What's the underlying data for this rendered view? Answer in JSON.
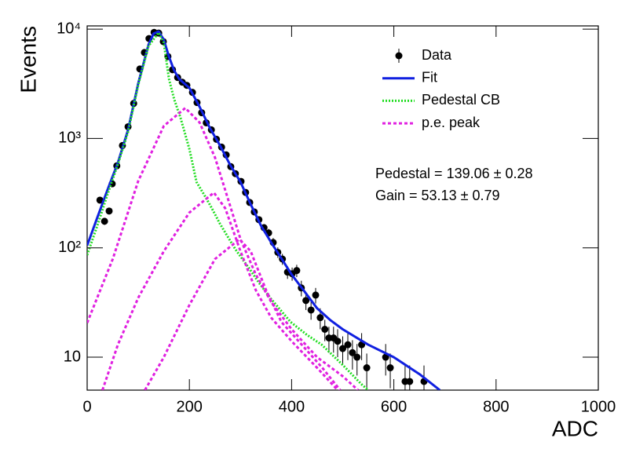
{
  "chart_data": {
    "type": "log-fit",
    "xlabel": "ADC",
    "ylabel": "Events",
    "xlim": [
      0,
      1000
    ],
    "xticks": [
      0,
      200,
      400,
      600,
      800,
      1000
    ],
    "ylim": [
      5,
      10700
    ],
    "yticks": [
      10,
      {
        "value": 100,
        "label": "10²"
      },
      {
        "value": 1000,
        "label": "10³"
      },
      {
        "value": 10000,
        "label": "10⁴"
      }
    ],
    "log_y": true,
    "legend": "upper right",
    "annotations": [
      "Pedestal = 139.06 ± 0.28",
      "Gain = 53.13 ± 0.79"
    ],
    "series": [
      {
        "name": "Data",
        "kind": "points",
        "color": "#000000",
        "x": [
          25,
          34,
          43,
          49,
          58,
          69,
          80,
          91,
          103,
          112,
          121,
          131,
          140,
          149,
          158,
          167,
          177,
          186,
          195,
          206,
          215,
          224,
          233,
          243,
          253,
          263,
          272,
          281,
          290,
          301,
          310,
          318,
          327,
          336,
          346,
          355,
          364,
          373,
          382,
          392,
          401,
          410,
          419,
          428,
          438,
          447,
          456,
          465,
          473,
          482,
          490,
          500,
          510,
          519,
          528,
          537,
          547,
          584,
          593,
          622,
          631,
          659
        ],
        "values": [
          273,
          175,
          217,
          385,
          562,
          862,
          1280,
          2090,
          4320,
          6110,
          8200,
          9340,
          9200,
          7690,
          5620,
          4250,
          3610,
          3270,
          3060,
          2640,
          2130,
          1720,
          1390,
          1200,
          984,
          834,
          708,
          553,
          477,
          405,
          321,
          260,
          213,
          181,
          153,
          137,
          112,
          91,
          79,
          60,
          58,
          62,
          43,
          33,
          27,
          37,
          23,
          18,
          15,
          15,
          14,
          12,
          13,
          11,
          10,
          13,
          8,
          10,
          8,
          6,
          6,
          6
        ],
        "errors": [
          17,
          13,
          15,
          20,
          24,
          29,
          36,
          46,
          66,
          78,
          91,
          97,
          96,
          88,
          75,
          65,
          60,
          57,
          55,
          51,
          46,
          41,
          37,
          35,
          31,
          29,
          27,
          24,
          22,
          20,
          18,
          16,
          15,
          13,
          12,
          12,
          11,
          10,
          9,
          8,
          8,
          8,
          7,
          6,
          5,
          6,
          5,
          4,
          4,
          4,
          4,
          3.5,
          3.6,
          3.3,
          3.2,
          3.6,
          2.8,
          3.2,
          2.8,
          2.4,
          2.4,
          2.4
        ]
      },
      {
        "name": "Fit",
        "kind": "line",
        "dash": "solid",
        "color": "#1020e0",
        "x": [
          0,
          20,
          40,
          60,
          80,
          100,
          120,
          130,
          140,
          150,
          160,
          170,
          180,
          200,
          220,
          240,
          260,
          280,
          300,
          320,
          340,
          360,
          380,
          400,
          425,
          450,
          475,
          500,
          550,
          600,
          650,
          690
        ],
        "values": [
          105,
          190,
          340,
          600,
          1200,
          3200,
          7200,
          9100,
          9500,
          8000,
          5600,
          4200,
          3500,
          2900,
          1950,
          1250,
          860,
          570,
          400,
          250,
          160,
          112,
          80,
          57,
          40,
          28,
          22,
          18,
          13,
          10,
          7,
          5
        ]
      },
      {
        "name": "Pedestal CB",
        "kind": "line",
        "dash": "dotted",
        "color": "#22dd22",
        "x": [
          0,
          20,
          40,
          60,
          80,
          100,
          120,
          140,
          150,
          160,
          170,
          183,
          200,
          214,
          230,
          244,
          260,
          290,
          320,
          336,
          360,
          398,
          430,
          459,
          500,
          536,
          550
        ],
        "values": [
          86,
          160,
          310,
          580,
          1150,
          3100,
          7000,
          9300,
          7500,
          3500,
          2300,
          1530,
          800,
          400,
          300,
          230,
          165,
          97,
          62,
          48,
          34,
          21,
          16,
          13,
          8.5,
          5.7,
          5
        ]
      },
      {
        "name": "p.e. peak",
        "kind": "line",
        "dash": "dashed",
        "color": "#e020e0",
        "components": [
          {
            "x": [
              0,
              50,
              100,
              150,
              192,
              220,
              250,
              280,
              300,
              330,
              360,
              400,
              450,
              500,
              530
            ],
            "values": [
              20.6,
              79,
              410,
              1300,
              1900,
              1400,
              670,
              240,
              120,
              57,
              32,
              18,
              10,
              6.7,
              5
            ]
          },
          {
            "x": [
              30,
              60,
              100,
              150,
              200,
              248,
              270,
              300,
              330,
              360,
              400,
              450,
              490
            ],
            "values": [
              5,
              13,
              35,
              93,
              210,
              320,
              230,
              93,
              41,
              23,
              14,
              8,
              5
            ]
          },
          {
            "x": [
              113,
              150,
              200,
              250,
              298,
              320,
              350,
              380,
              420,
              460,
              495
            ],
            "values": [
              5,
              10,
              30,
              79,
              120,
              93,
              41,
              21,
              13,
              8,
              5
            ]
          }
        ]
      }
    ]
  }
}
